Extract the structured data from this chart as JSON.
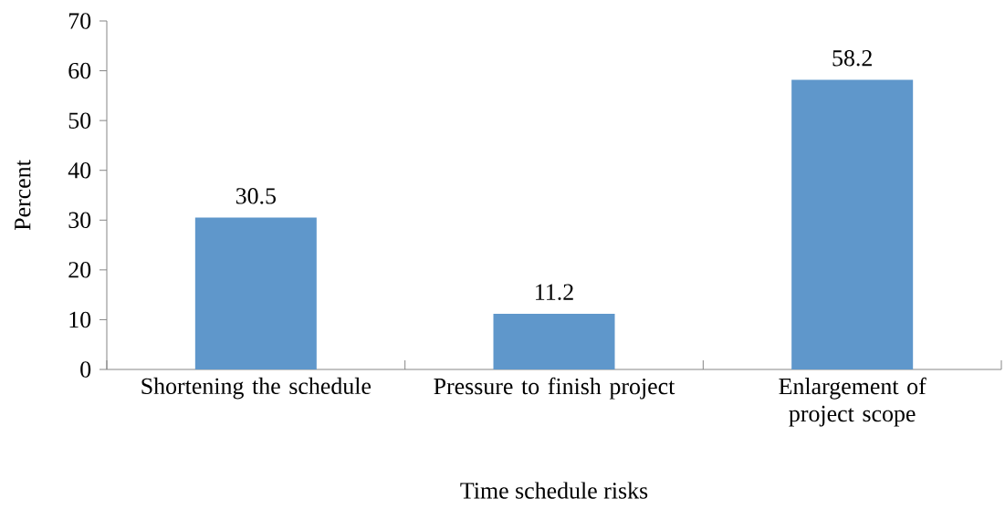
{
  "chart_data": {
    "type": "bar",
    "xlabel": "Time schedule risks",
    "ylabel": "Percent",
    "categories": [
      "Shortening the schedule",
      "Pressure to finish project",
      "Enlargement of project scope"
    ],
    "values": [
      30.5,
      11.2,
      58.2
    ],
    "color": "#5f97cb",
    "ylim": [
      0,
      70
    ],
    "yticks": [
      0,
      10,
      20,
      30,
      40,
      50,
      60,
      70
    ],
    "data_labels": true
  }
}
